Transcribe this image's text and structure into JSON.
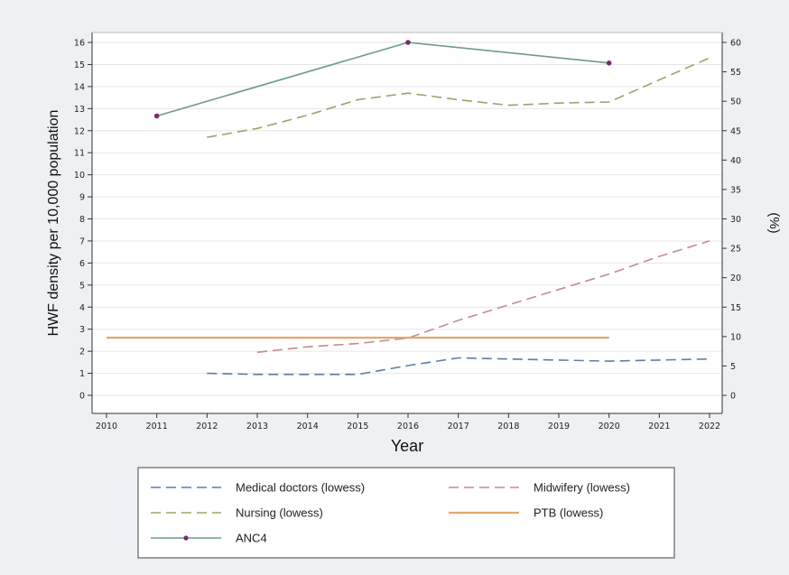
{
  "chart_data": {
    "type": "line",
    "xlabel": "Year",
    "ylabel_left": "HWF density per 10,000 population",
    "ylabel_right": "(%)",
    "x_ticks": [
      2010,
      2011,
      2012,
      2013,
      2014,
      2015,
      2016,
      2017,
      2018,
      2019,
      2020,
      2021,
      2022
    ],
    "xlim": [
      2010,
      2022
    ],
    "ylim_left": [
      0,
      16
    ],
    "ylim_right": [
      0,
      60
    ],
    "y_left_ticks": [
      0,
      1,
      2,
      3,
      4,
      5,
      6,
      7,
      8,
      9,
      10,
      11,
      12,
      13,
      14,
      15,
      16
    ],
    "y_right_ticks": [
      0,
      5,
      10,
      15,
      20,
      25,
      30,
      35,
      40,
      45,
      50,
      55,
      60
    ],
    "grid": "horizontal lines at left-axis ticks",
    "legend_position": "bottom",
    "series": [
      {
        "name": "Medical doctors (lowess)",
        "axis": "left",
        "color": "#5a7fa8",
        "style": "dashed",
        "x": [
          2012,
          2013,
          2014,
          2015,
          2016,
          2017,
          2018,
          2019,
          2020,
          2021,
          2022
        ],
        "values": [
          1.0,
          0.95,
          0.95,
          0.95,
          1.35,
          1.7,
          1.65,
          1.6,
          1.55,
          1.6,
          1.65
        ]
      },
      {
        "name": "Midwifery (lowess)",
        "axis": "left",
        "color": "#c48c8c",
        "style": "dashed",
        "x": [
          2013,
          2014,
          2015,
          2016,
          2017,
          2018,
          2019,
          2020,
          2021,
          2022
        ],
        "values": [
          1.95,
          2.2,
          2.35,
          2.6,
          3.4,
          4.1,
          4.8,
          5.5,
          6.3,
          7.0
        ]
      },
      {
        "name": "Nursing (lowess)",
        "axis": "left",
        "color": "#96a86a",
        "style": "dashed",
        "x": [
          2012,
          2013,
          2014,
          2015,
          2016,
          2017,
          2018,
          2019,
          2020,
          2021,
          2022
        ],
        "values": [
          11.7,
          12.1,
          12.7,
          13.4,
          13.7,
          13.4,
          13.15,
          13.25,
          13.3,
          14.3,
          15.3
        ]
      },
      {
        "name": "PTB (lowess)",
        "axis": "right",
        "color": "#e3a86b",
        "style": "solid",
        "x": [
          2010,
          2020
        ],
        "values": [
          9.8,
          9.8
        ]
      },
      {
        "name": "ANC4",
        "axis": "right",
        "color": "#6d9a90",
        "style": "solid-markers",
        "marker_color": "#7a2a6e",
        "x": [
          2011,
          2016,
          2020
        ],
        "values": [
          47.5,
          60,
          56.5
        ]
      }
    ]
  }
}
